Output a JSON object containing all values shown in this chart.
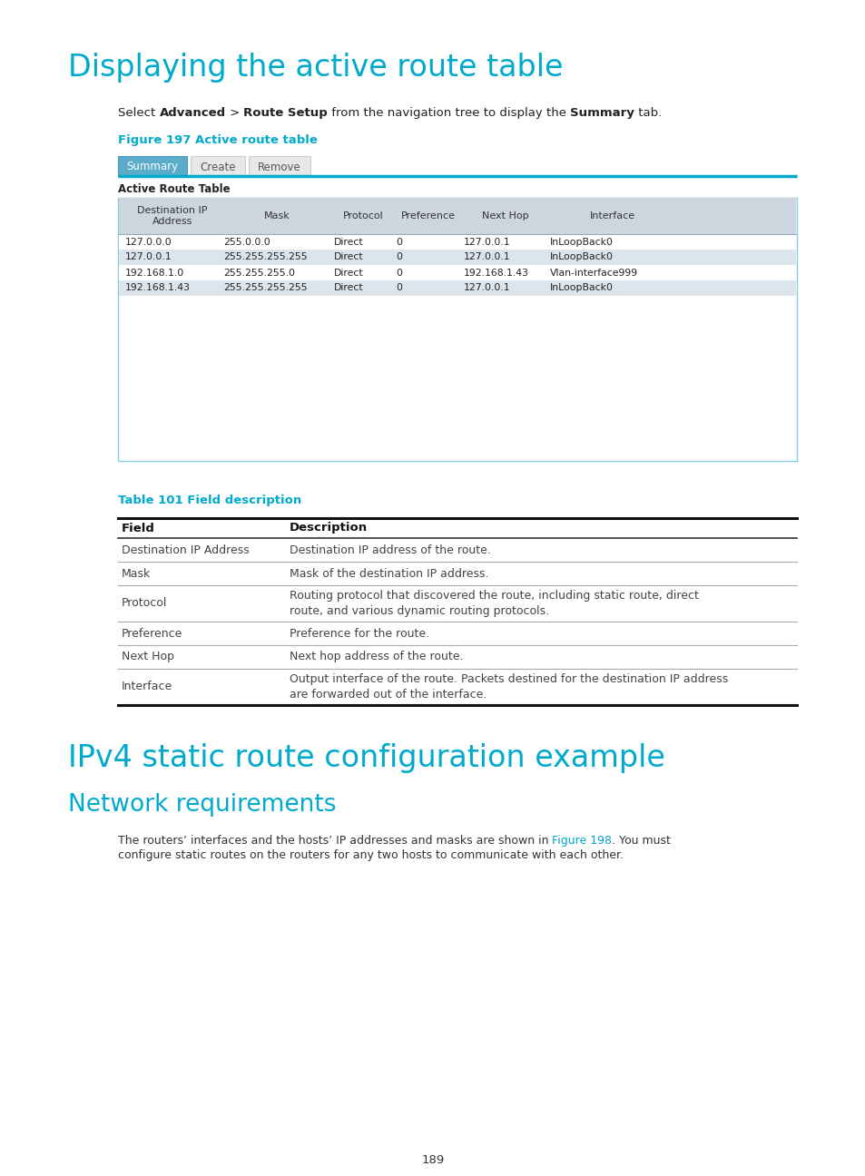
{
  "page_bg": "#ffffff",
  "title1": "Displaying the active route table",
  "title1_color": "#00aacc",
  "title1_fontsize": 24,
  "figure_label": "Figure 197 Active route table",
  "figure_label_color": "#00aacc",
  "tab_summary": "Summary",
  "tab_create": "Create",
  "tab_remove": "Remove",
  "active_route_table_label": "Active Route Table",
  "table_header": [
    "Destination IP\nAddress",
    "Mask",
    "Protocol",
    "Preference",
    "Next Hop",
    "Interface"
  ],
  "table_rows": [
    [
      "127.0.0.0",
      "255.0.0.0",
      "Direct",
      "0",
      "127.0.0.1",
      "InLoopBack0"
    ],
    [
      "127.0.0.1",
      "255.255.255.255",
      "Direct",
      "0",
      "127.0.0.1",
      "InLoopBack0"
    ],
    [
      "192.168.1.0",
      "255.255.255.0",
      "Direct",
      "0",
      "192.168.1.43",
      "Vlan-interface999"
    ],
    [
      "192.168.1.43",
      "255.255.255.255",
      "Direct",
      "0",
      "127.0.0.1",
      "InLoopBack0"
    ]
  ],
  "table2_label": "Table 101 Field description",
  "table2_label_color": "#00aacc",
  "table2_rows": [
    [
      "Destination IP Address",
      "Destination IP address of the route.",
      26
    ],
    [
      "Mask",
      "Mask of the destination IP address.",
      26
    ],
    [
      "Protocol",
      "Routing protocol that discovered the route, including static route, direct\nroute, and various dynamic routing protocols.",
      40
    ],
    [
      "Preference",
      "Preference for the route.",
      26
    ],
    [
      "Next Hop",
      "Next hop address of the route.",
      26
    ],
    [
      "Interface",
      "Output interface of the route. Packets destined for the destination IP address\nare forwarded out of the interface.",
      40
    ]
  ],
  "title2": "IPv4 static route configuration example",
  "title2_color": "#00aacc",
  "title3": "Network requirements",
  "title3_color": "#00aacc",
  "page_number": "189"
}
